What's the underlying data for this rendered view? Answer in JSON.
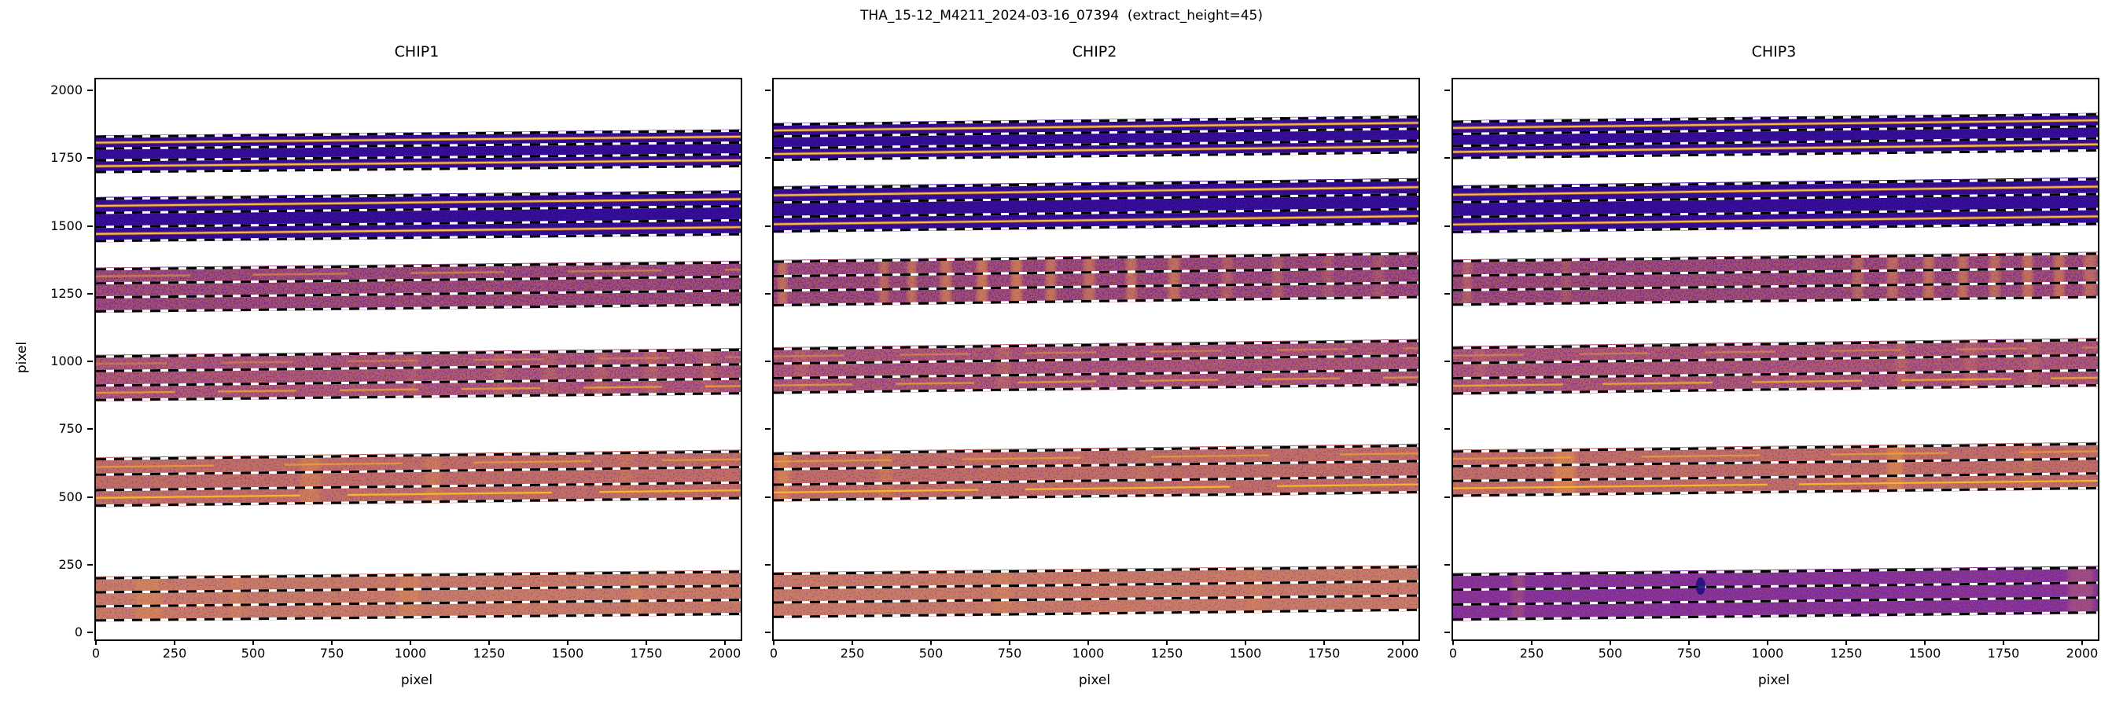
{
  "figure": {
    "suptitle": "THA_15-12_M4211_2024-03-16_07394  (extract_height=45)",
    "background": "#ffffff",
    "extract_height": 45
  },
  "axes": {
    "xlabel": "pixel",
    "ylabel": "pixel",
    "x_ticks": [
      0,
      250,
      500,
      750,
      1000,
      1250,
      1500,
      1750,
      2000
    ],
    "y_ticks": [
      0,
      250,
      500,
      750,
      1000,
      1250,
      1500,
      1750,
      2000
    ]
  },
  "colors": {
    "dash_black": "#000000",
    "dash_white": "#ffffff",
    "trace_yellow": "#F5BE32",
    "trace_glow": "#E0762B",
    "smudge_orange": "#E89347",
    "spine": "#000000"
  },
  "chart_data": [
    {
      "type": "heatmap",
      "title": "CHIP1",
      "xlabel": "pixel",
      "ylabel": "pixel",
      "xlim": [
        0,
        2048
      ],
      "ylim": [
        0,
        2048
      ],
      "orders": [
        {
          "y0": 1700,
          "y1": 1840,
          "rise": 22,
          "base": "#390FA0",
          "accent": "#1C0560",
          "density": "sparse",
          "accent_opacity": 0.55,
          "yellow": [
            {
              "f": 0.195,
              "o": 1
            },
            {
              "f": 0.815,
              "o": 1
            }
          ],
          "smudges": []
        },
        {
          "y0": 1445,
          "y1": 1612,
          "rise": 25,
          "base": "#390FA0",
          "accent": "#1C0560",
          "density": "sparse",
          "accent_opacity": 0.55,
          "yellow": [
            {
              "f": 0.195,
              "o": 1
            },
            {
              "f": 0.815,
              "o": 1
            }
          ],
          "smudges": []
        },
        {
          "y0": 1185,
          "y1": 1352,
          "rise": 25,
          "base": "#7B2D94",
          "accent": "#D0793F",
          "density": "mid",
          "accent_opacity": 0.5,
          "yellow": [
            {
              "f": 0.195,
              "o": 0.4,
              "dash": "120 80"
            }
          ],
          "smudges": []
        },
        {
          "y0": 858,
          "y1": 1030,
          "rise": 25,
          "base": "#8C3896",
          "accent": "#D3803F",
          "density": "mid",
          "accent_opacity": 0.55,
          "yellow": [
            {
              "f": 0.195,
              "o": 0.3,
              "dash": "90 70"
            },
            {
              "f": 0.815,
              "o": 0.6,
              "dash": "100 55"
            }
          ],
          "smudges": [
            {
              "x": 985,
              "w": 30,
              "o": 0.15
            },
            {
              "x": 1260,
              "w": 40,
              "o": 0.18
            },
            {
              "x": 1420,
              "w": 40,
              "o": 0.18
            },
            {
              "x": 1580,
              "w": 40,
              "o": 0.18
            },
            {
              "x": 1740,
              "w": 44,
              "o": 0.18
            },
            {
              "x": 1920,
              "w": 44,
              "o": 0.18
            }
          ]
        },
        {
          "y0": 468,
          "y1": 652,
          "rise": 28,
          "base": "#9C4A86",
          "accent": "#DA8848",
          "density": "dense",
          "accent_opacity": 0.6,
          "yellow": [
            {
              "f": 0.195,
              "o": 0.5,
              "dash": "150 90"
            },
            {
              "f": 0.815,
              "o": 0.9,
              "dash": "260 60"
            }
          ],
          "smudges": [
            {
              "x": 645,
              "w": 64,
              "o": 0.35
            },
            {
              "x": 1040,
              "w": 50,
              "o": 0.3
            },
            {
              "x": 1660,
              "w": 40,
              "o": 0.2
            }
          ]
        },
        {
          "y0": 45,
          "y1": 212,
          "rise": 24,
          "base": "#A55C7B",
          "accent": "#DF9055",
          "density": "dense",
          "accent_opacity": 0.62,
          "yellow": [],
          "smudges": [
            {
              "x": 120,
              "w": 80,
              "o": 0.3
            },
            {
              "x": 420,
              "w": 40,
              "o": 0.2
            },
            {
              "x": 960,
              "w": 60,
              "o": 0.3
            },
            {
              "x": 1690,
              "w": 40,
              "o": 0.25
            }
          ]
        }
      ]
    },
    {
      "type": "heatmap",
      "title": "CHIP2",
      "xlabel": "pixel",
      "ylabel": "pixel",
      "xlim": [
        0,
        2048
      ],
      "ylim": [
        0,
        2048
      ],
      "orders": [
        {
          "y0": 1745,
          "y1": 1885,
          "rise": 28,
          "base": "#390FA0",
          "accent": "#1C0560",
          "density": "sparse",
          "accent_opacity": 0.55,
          "yellow": [
            {
              "f": 0.195,
              "o": 1
            },
            {
              "f": 0.815,
              "o": 1
            }
          ],
          "smudges": []
        },
        {
          "y0": 1480,
          "y1": 1652,
          "rise": 30,
          "base": "#390FA0",
          "accent": "#1C0560",
          "density": "sparse",
          "accent_opacity": 0.55,
          "yellow": [
            {
              "f": 0.195,
              "o": 1
            },
            {
              "f": 0.815,
              "o": 1
            }
          ],
          "smudges": []
        },
        {
          "y0": 1208,
          "y1": 1380,
          "rise": 30,
          "base": "#7B2D94",
          "accent": "#D0793F",
          "density": "mid",
          "accent_opacity": 0.5,
          "yellow": [],
          "smudges": [
            {
              "x": 8,
              "w": 30,
              "o": 0.5
            },
            {
              "x": 330,
              "w": 30,
              "o": 0.45
            },
            {
              "x": 420,
              "w": 28,
              "o": 0.5
            },
            {
              "x": 525,
              "w": 34,
              "o": 0.55
            },
            {
              "x": 640,
              "w": 34,
              "o": 0.6
            },
            {
              "x": 750,
              "w": 34,
              "o": 0.6
            },
            {
              "x": 860,
              "w": 32,
              "o": 0.55
            },
            {
              "x": 980,
              "w": 36,
              "o": 0.5
            },
            {
              "x": 1115,
              "w": 34,
              "o": 0.5
            },
            {
              "x": 1250,
              "w": 36,
              "o": 0.5
            },
            {
              "x": 1420,
              "w": 34,
              "o": 0.3
            },
            {
              "x": 1580,
              "w": 34,
              "o": 0.25
            },
            {
              "x": 1740,
              "w": 34,
              "o": 0.2
            },
            {
              "x": 1900,
              "w": 36,
              "o": 0.18
            }
          ]
        },
        {
          "y0": 885,
          "y1": 1058,
          "rise": 30,
          "base": "#8C3896",
          "accent": "#D3803F",
          "density": "mid",
          "accent_opacity": 0.55,
          "yellow": [
            {
              "f": 0.195,
              "o": 0.35,
              "dash": "90 70"
            },
            {
              "f": 0.815,
              "o": 0.55,
              "dash": "100 55"
            }
          ],
          "smudges": [
            {
              "x": 60,
              "w": 40,
              "o": 0.15
            },
            {
              "x": 700,
              "w": 50,
              "o": 0.2
            }
          ]
        },
        {
          "y0": 488,
          "y1": 672,
          "rise": 30,
          "base": "#9C4A86",
          "accent": "#DA8848",
          "density": "dense",
          "accent_opacity": 0.6,
          "yellow": [
            {
              "f": 0.195,
              "o": 0.5,
              "dash": "150 90"
            },
            {
              "f": 0.815,
              "o": 0.9,
              "dash": "260 60"
            }
          ],
          "smudges": [
            {
              "x": 5,
              "w": 40,
              "o": 0.5
            },
            {
              "x": 330,
              "w": 40,
              "o": 0.3
            },
            {
              "x": 1150,
              "w": 40,
              "o": 0.15
            }
          ]
        },
        {
          "y0": 58,
          "y1": 228,
          "rise": 26,
          "base": "#A55C7B",
          "accent": "#DF9055",
          "density": "dense",
          "accent_opacity": 0.62,
          "yellow": [],
          "smudges": [
            {
              "x": 690,
              "w": 60,
              "o": 0.25
            },
            {
              "x": 1500,
              "w": 40,
              "o": 0.15
            }
          ]
        }
      ]
    },
    {
      "type": "heatmap",
      "title": "CHIP3",
      "xlabel": "pixel",
      "ylabel": "pixel",
      "xlim": [
        0,
        2048
      ],
      "ylim": [
        0,
        2048
      ],
      "orders": [
        {
          "y0": 1752,
          "y1": 1895,
          "rise": 28,
          "base": "#390FA0",
          "accent": "#1C0560",
          "density": "sparse",
          "accent_opacity": 0.55,
          "yellow": [
            {
              "f": 0.195,
              "o": 1
            },
            {
              "f": 0.815,
              "o": 1
            }
          ],
          "smudges": []
        },
        {
          "y0": 1478,
          "y1": 1655,
          "rise": 30,
          "base": "#390FA0",
          "accent": "#1C0560",
          "density": "sparse",
          "accent_opacity": 0.55,
          "yellow": [
            {
              "f": 0.195,
              "o": 1
            },
            {
              "f": 0.815,
              "o": 1
            }
          ],
          "smudges": []
        },
        {
          "y0": 1210,
          "y1": 1382,
          "rise": 28,
          "base": "#7B2D94",
          "accent": "#D0793F",
          "density": "mid",
          "accent_opacity": 0.5,
          "yellow": [],
          "smudges": [
            {
              "x": 25,
              "w": 30,
              "o": 0.3
            },
            {
              "x": 340,
              "w": 28,
              "o": 0.2
            },
            {
              "x": 1265,
              "w": 34,
              "o": 0.4
            },
            {
              "x": 1375,
              "w": 34,
              "o": 0.45
            },
            {
              "x": 1490,
              "w": 34,
              "o": 0.5
            },
            {
              "x": 1600,
              "w": 32,
              "o": 0.5
            },
            {
              "x": 1700,
              "w": 34,
              "o": 0.45
            },
            {
              "x": 1805,
              "w": 34,
              "o": 0.5
            },
            {
              "x": 1905,
              "w": 34,
              "o": 0.5
            },
            {
              "x": 2000,
              "w": 40,
              "o": 0.45
            }
          ]
        },
        {
          "y0": 882,
          "y1": 1062,
          "rise": 30,
          "base": "#8C3896",
          "accent": "#D3803F",
          "density": "mid",
          "accent_opacity": 0.55,
          "yellow": [
            {
              "f": 0.195,
              "o": 0.35,
              "dash": "90 70"
            },
            {
              "f": 0.815,
              "o": 0.7,
              "dash": "140 50"
            }
          ],
          "smudges": [
            {
              "x": 60,
              "w": 36,
              "o": 0.15
            },
            {
              "x": 1400,
              "w": 40,
              "o": 0.2
            },
            {
              "x": 1620,
              "w": 40,
              "o": 0.2
            },
            {
              "x": 1820,
              "w": 40,
              "o": 0.2
            }
          ]
        },
        {
          "y0": 505,
          "y1": 680,
          "rise": 28,
          "base": "#9C4A86",
          "accent": "#DA8848",
          "density": "dense",
          "accent_opacity": 0.6,
          "yellow": [
            {
              "f": 0.195,
              "o": 0.5,
              "dash": "150 90"
            },
            {
              "f": 0.815,
              "o": 0.9,
              "dash": "400 40"
            }
          ],
          "smudges": [
            {
              "x": 315,
              "w": 70,
              "o": 0.5
            },
            {
              "x": 1375,
              "w": 50,
              "o": 0.5
            },
            {
              "x": 1800,
              "w": 40,
              "o": 0.2
            }
          ]
        },
        {
          "y0": 48,
          "y1": 225,
          "rise": 26,
          "base": "#7E2BA2",
          "accent": "#C06A3E",
          "density": "sparse",
          "accent_opacity": 0.4,
          "yellow": [],
          "smudges": [
            {
              "x": 180,
              "w": 40,
              "o": 0.2
            },
            {
              "x": 1950,
              "w": 80,
              "o": 0.25
            }
          ],
          "blob": {
            "x": 782,
            "fy": 0.33,
            "rx": 6,
            "ry": 11,
            "color": "#1D0F7E"
          }
        }
      ]
    }
  ]
}
